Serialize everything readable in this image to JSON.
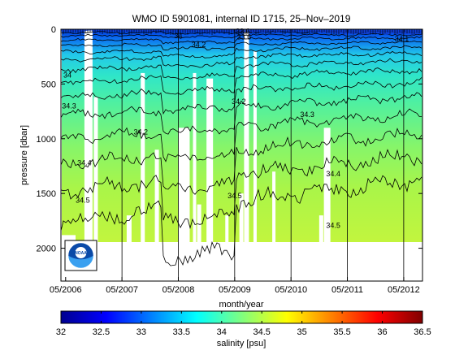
{
  "chart_data": {
    "type": "heatmap",
    "title": "WMO ID 5901081, internal ID 1715, 25–Nov–2019",
    "xlabel": "month/year",
    "ylabel": "pressure [dbar]",
    "xlim": [
      "2006-04",
      "2012-09"
    ],
    "ylim": [
      2300,
      0
    ],
    "x_tick_labels": [
      "05/2006",
      "05/2007",
      "05/2008",
      "05/2009",
      "05/2010",
      "05/2011",
      "05/2012"
    ],
    "y_ticks": [
      0,
      500,
      1000,
      1500,
      2000
    ],
    "colorbar": {
      "label": "salinity [psu]",
      "ticks": [
        32,
        32.5,
        33,
        33.5,
        34,
        34.5,
        35,
        35.5,
        36,
        36.5
      ],
      "range": [
        32,
        36.5
      ],
      "colormap": "jet"
    },
    "contour_labels": [
      "34.2",
      "34.4",
      "34.5",
      "33.6",
      "34",
      "34.3",
      "34.1"
    ],
    "contour_levels": [
      33.6,
      33.8,
      34.0,
      34.1,
      34.2,
      34.3,
      34.4,
      34.5,
      34.6
    ],
    "profile_depth_max_dbar": 2000,
    "surface_salinity_psu": 33.2,
    "deep_salinity_psu": 34.65,
    "gap_color": "#ffffff",
    "logo": {
      "name": "noaa-logo",
      "text": "NOAA"
    }
  }
}
